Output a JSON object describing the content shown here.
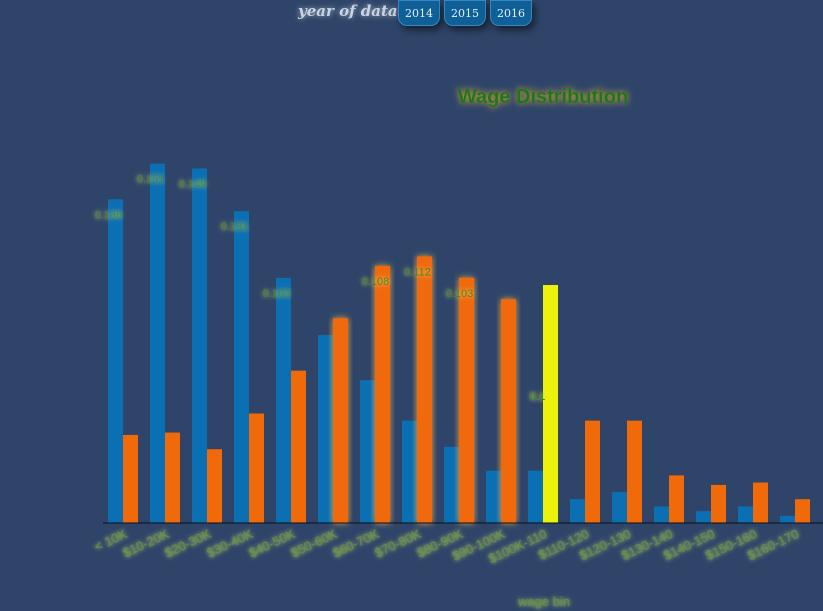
{
  "year_selector": {
    "label": "year of data:",
    "years": [
      "2014",
      "2015",
      "2016"
    ]
  },
  "colors": {
    "background": "#2e4569",
    "series_a": "#0b6fb3",
    "series_b": "#f06a0a",
    "highlight": "#ecf20a",
    "text_green": "#157a15"
  },
  "chart_data": {
    "type": "bar",
    "title": "Wage Distribution",
    "xlabel": "wage bin",
    "ylabel": "",
    "ylim": [
      0,
      0.16
    ],
    "categories": [
      "< 10K",
      "$10-20K",
      "$20-30K",
      "$30-40K",
      "$40-50K",
      "$50-60K",
      "$60-70K",
      "$70-80K",
      "$80-90K",
      "$90-100K",
      "$100K-110",
      "$110-120",
      "$120-130",
      "$130-140",
      "$140-150",
      "$150-160",
      "$160-170"
    ],
    "series": [
      {
        "values": [
          0.136,
          0.151,
          0.149,
          0.131,
          0.103,
          0.079,
          0.06,
          0.043,
          0.032,
          0.022,
          0.022,
          0.01,
          0.013,
          0.007,
          0.005,
          0.007,
          0.003
        ]
      },
      {
        "values": [
          0.037,
          0.038,
          0.031,
          0.046,
          0.064,
          0.086,
          0.108,
          0.112,
          0.103,
          0.094,
          0.1,
          0.043,
          0.043,
          0.02,
          0.016,
          0.017,
          0.01
        ]
      }
    ],
    "labels": [
      {
        "category": 0,
        "series": 0,
        "text": "0.136"
      },
      {
        "category": 1,
        "series": 0,
        "text": "0.151"
      },
      {
        "category": 2,
        "series": 0,
        "text": "0.149"
      },
      {
        "category": 3,
        "series": 0,
        "text": "0.131"
      },
      {
        "category": 4,
        "series": 0,
        "text": "0.103"
      },
      {
        "category": 6,
        "series": 1,
        "text": "0.108"
      },
      {
        "category": 7,
        "series": 1,
        "text": "0.112"
      },
      {
        "category": 8,
        "series": 1,
        "text": "0.103"
      },
      {
        "category": 10,
        "series": 1,
        "text": "0.1"
      }
    ],
    "highlighted": {
      "category": 10,
      "series": 1
    },
    "grid": false
  }
}
